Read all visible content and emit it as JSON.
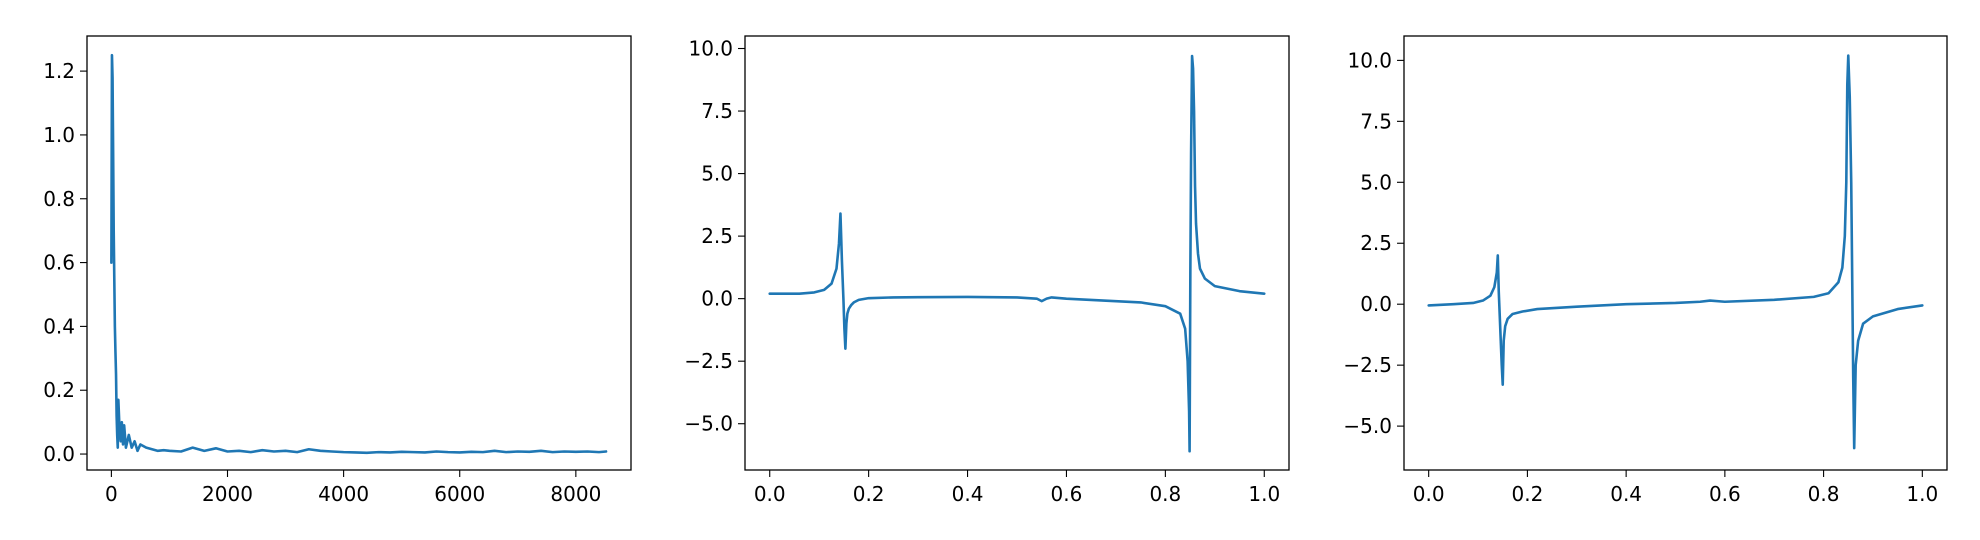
{
  "figure": {
    "background": "#ffffff",
    "line_color": "#1f77b4"
  },
  "chart_data": [
    {
      "type": "line",
      "title": "",
      "xlabel": "",
      "ylabel": "",
      "xlim": [
        -420,
        8950
      ],
      "ylim": [
        -0.05,
        1.31
      ],
      "xticks": [
        0,
        2000,
        4000,
        6000,
        8000
      ],
      "xtick_labels": [
        "0",
        "2000",
        "4000",
        "6000",
        "8000"
      ],
      "yticks": [
        0.0,
        0.2,
        0.4,
        0.6,
        0.8,
        1.0,
        1.2
      ],
      "ytick_labels": [
        "0.0",
        "0.2",
        "0.4",
        "0.6",
        "0.8",
        "1.0",
        "1.2"
      ],
      "grid": false,
      "series": [
        {
          "x": [
            0,
            10,
            20,
            30,
            40,
            50,
            60,
            70,
            80,
            90,
            100,
            110,
            120,
            140,
            160,
            180,
            200,
            220,
            250,
            300,
            350,
            400,
            450,
            500,
            600,
            700,
            800,
            900,
            1000,
            1200,
            1400,
            1600,
            1800,
            2000,
            2200,
            2400,
            2600,
            2800,
            3000,
            3200,
            3400,
            3600,
            3800,
            4000,
            4200,
            4400,
            4600,
            4800,
            5000,
            5200,
            5400,
            5600,
            5800,
            6000,
            6200,
            6400,
            6600,
            6800,
            7000,
            7200,
            7400,
            7600,
            7800,
            8000,
            8200,
            8400,
            8520
          ],
          "y": [
            0.6,
            1.25,
            1.18,
            0.95,
            0.7,
            0.55,
            0.4,
            0.32,
            0.25,
            0.12,
            0.06,
            0.02,
            0.17,
            0.08,
            0.04,
            0.1,
            0.03,
            0.09,
            0.02,
            0.06,
            0.02,
            0.04,
            0.01,
            0.03,
            0.02,
            0.015,
            0.01,
            0.012,
            0.01,
            0.008,
            0.02,
            0.01,
            0.018,
            0.008,
            0.01,
            0.006,
            0.012,
            0.008,
            0.01,
            0.006,
            0.015,
            0.01,
            0.008,
            0.006,
            0.005,
            0.004,
            0.006,
            0.005,
            0.007,
            0.006,
            0.005,
            0.008,
            0.006,
            0.005,
            0.007,
            0.006,
            0.01,
            0.006,
            0.008,
            0.007,
            0.01,
            0.006,
            0.008,
            0.007,
            0.008,
            0.006,
            0.008
          ]
        }
      ]
    },
    {
      "type": "line",
      "title": "",
      "xlabel": "",
      "ylabel": "",
      "xlim": [
        -0.05,
        1.05
      ],
      "ylim": [
        -6.85,
        10.5
      ],
      "xticks": [
        0.0,
        0.2,
        0.4,
        0.6,
        0.8,
        1.0
      ],
      "xtick_labels": [
        "0.0",
        "0.2",
        "0.4",
        "0.6",
        "0.8",
        "1.0"
      ],
      "yticks": [
        -5.0,
        -2.5,
        0.0,
        2.5,
        5.0,
        7.5,
        10.0
      ],
      "ytick_labels": [
        "−5.0",
        "−2.5",
        "0.0",
        "2.5",
        "5.0",
        "7.5",
        "10.0"
      ],
      "grid": false,
      "series": [
        {
          "x": [
            0.0,
            0.03,
            0.06,
            0.09,
            0.11,
            0.125,
            0.135,
            0.14,
            0.143,
            0.146,
            0.149,
            0.151,
            0.153,
            0.155,
            0.157,
            0.16,
            0.165,
            0.17,
            0.18,
            0.2,
            0.25,
            0.3,
            0.4,
            0.5,
            0.54,
            0.55,
            0.56,
            0.57,
            0.6,
            0.7,
            0.75,
            0.8,
            0.83,
            0.84,
            0.845,
            0.848,
            0.849,
            0.8505,
            0.852,
            0.854,
            0.856,
            0.858,
            0.86,
            0.862,
            0.866,
            0.87,
            0.88,
            0.9,
            0.95,
            1.0
          ],
          "y": [
            0.2,
            0.2,
            0.2,
            0.25,
            0.35,
            0.6,
            1.2,
            2.2,
            3.4,
            1.5,
            0.0,
            -1.2,
            -2.0,
            -1.0,
            -0.6,
            -0.4,
            -0.25,
            -0.15,
            -0.05,
            0.02,
            0.05,
            0.06,
            0.07,
            0.05,
            0.0,
            -0.1,
            0.0,
            0.05,
            0.0,
            -0.1,
            -0.15,
            -0.3,
            -0.6,
            -1.2,
            -2.5,
            -4.5,
            -6.1,
            1.0,
            5.8,
            9.7,
            9.2,
            7.5,
            4.5,
            3.0,
            1.8,
            1.2,
            0.8,
            0.5,
            0.3,
            0.2
          ]
        }
      ]
    },
    {
      "type": "line",
      "title": "",
      "xlabel": "",
      "ylabel": "",
      "xlim": [
        -0.05,
        1.05
      ],
      "ylim": [
        -6.8,
        11.0
      ],
      "xticks": [
        0.0,
        0.2,
        0.4,
        0.6,
        0.8,
        1.0
      ],
      "xtick_labels": [
        "0.0",
        "0.2",
        "0.4",
        "0.6",
        "0.8",
        "1.0"
      ],
      "yticks": [
        -5.0,
        -2.5,
        0.0,
        2.5,
        5.0,
        7.5,
        10.0
      ],
      "ytick_labels": [
        "−5.0",
        "−2.5",
        "0.0",
        "2.5",
        "5.0",
        "7.5",
        "10.0"
      ],
      "grid": false,
      "series": [
        {
          "x": [
            0.0,
            0.05,
            0.09,
            0.11,
            0.125,
            0.133,
            0.138,
            0.14,
            0.142,
            0.144,
            0.146,
            0.148,
            0.15,
            0.152,
            0.155,
            0.16,
            0.17,
            0.19,
            0.22,
            0.3,
            0.4,
            0.5,
            0.55,
            0.57,
            0.6,
            0.7,
            0.78,
            0.81,
            0.83,
            0.838,
            0.843,
            0.846,
            0.848,
            0.85,
            0.853,
            0.856,
            0.858,
            0.86,
            0.862,
            0.865,
            0.87,
            0.88,
            0.9,
            0.95,
            1.0
          ],
          "y": [
            -0.05,
            0.0,
            0.05,
            0.15,
            0.35,
            0.7,
            1.3,
            2.0,
            0.5,
            -0.5,
            -1.5,
            -2.5,
            -3.3,
            -1.5,
            -0.9,
            -0.6,
            -0.4,
            -0.3,
            -0.2,
            -0.1,
            0.0,
            0.05,
            0.1,
            0.15,
            0.1,
            0.18,
            0.3,
            0.45,
            0.9,
            1.5,
            2.8,
            5.0,
            9.0,
            10.2,
            8.5,
            5.0,
            1.0,
            -3.0,
            -5.9,
            -2.5,
            -1.5,
            -0.8,
            -0.5,
            -0.2,
            -0.05
          ]
        }
      ]
    }
  ]
}
